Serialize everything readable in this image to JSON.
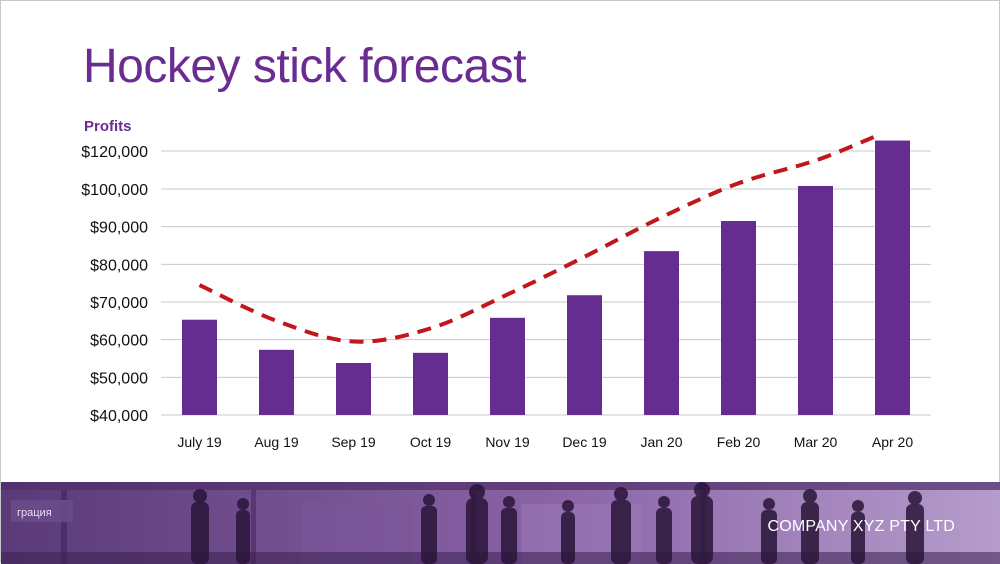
{
  "slide": {
    "title": "Hockey stick forecast",
    "company": "COMPANY XYZ PTY LTD",
    "sign_text": "грация"
  },
  "colors": {
    "title": "#6a2c91",
    "bar": "#662d91",
    "trend": "#c0161c",
    "footer": "#8a63a6"
  },
  "chart_data": {
    "type": "bar",
    "ylabel": "Profits",
    "categories": [
      "July 19",
      "Aug 19",
      "Sep 19",
      "Oct 19",
      "Nov 19",
      "Dec 19",
      "Jan 20",
      "Feb 20",
      "Mar 20",
      "Apr 20"
    ],
    "series": [
      {
        "values": [
          65300,
          57300,
          53800,
          56500,
          65800,
          71800,
          83500,
          91500,
          101600,
          125500
        ]
      }
    ],
    "trend_line": [
      74500,
      65000,
      59500,
      63000,
      72000,
      82000,
      92500,
      103000,
      115000,
      127500
    ],
    "y_ticks": [
      {
        "value": 40000,
        "label": "$40,000"
      },
      {
        "value": 50000,
        "label": "$50,000"
      },
      {
        "value": 60000,
        "label": "$60,000"
      },
      {
        "value": 70000,
        "label": "$70,000"
      },
      {
        "value": 80000,
        "label": "$80,000"
      },
      {
        "value": 90000,
        "label": "$90,000"
      },
      {
        "value": 100000,
        "label": "$100,000"
      },
      {
        "value": 120000,
        "label": "$120,000"
      }
    ],
    "grid": true,
    "legend": "none"
  }
}
